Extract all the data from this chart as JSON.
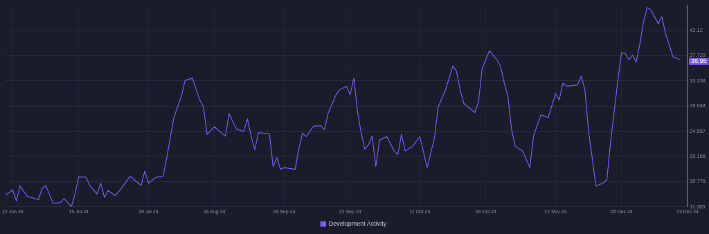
{
  "chart_data": {
    "type": "line",
    "legend": "bottom",
    "grid": true,
    "marker": "none",
    "line_style": "solid",
    "xlim": [
      "2024-06-20",
      "2024-12-23"
    ],
    "xticks": [
      {
        "value": "2024-06-22",
        "label": "22 Jun 24"
      },
      {
        "value": "2024-07-10",
        "label": "10 Jul 24"
      },
      {
        "value": "2024-07-29",
        "label": "29 Jul 24"
      },
      {
        "value": "2024-08-16",
        "label": "16 Aug 24"
      },
      {
        "value": "2024-09-04",
        "label": "04 Sep 24"
      },
      {
        "value": "2024-09-22",
        "label": "22 Sep 24"
      },
      {
        "value": "2024-10-11",
        "label": "11 Oct 24"
      },
      {
        "value": "2024-10-29",
        "label": "29 Oct 24"
      },
      {
        "value": "2024-11-17",
        "label": "17 Nov 24"
      },
      {
        "value": "2024-12-05",
        "label": "05 Dec 24"
      },
      {
        "value": "2024-12-23",
        "label": "23 Dec 24"
      }
    ],
    "ylim": [
      11.385,
      46.511
    ],
    "yticks": [
      11.385,
      15.776,
      20.166,
      24.557,
      28.948,
      33.338,
      37.729,
      42.12
    ],
    "x": [
      "2024-06-20",
      "2024-06-22",
      "2024-06-23",
      "2024-06-24",
      "2024-06-26",
      "2024-06-29",
      "2024-06-30",
      "2024-07-01",
      "2024-07-03",
      "2024-07-05",
      "2024-07-06",
      "2024-07-08",
      "2024-07-09",
      "2024-07-10",
      "2024-07-12",
      "2024-07-13",
      "2024-07-15",
      "2024-07-16",
      "2024-07-17",
      "2024-07-18",
      "2024-07-20",
      "2024-07-22",
      "2024-07-24",
      "2024-07-27",
      "2024-07-28",
      "2024-07-29",
      "2024-07-31",
      "2024-08-02",
      "2024-08-03",
      "2024-08-04",
      "2024-08-05",
      "2024-08-07",
      "2024-08-08",
      "2024-08-10",
      "2024-08-12",
      "2024-08-13",
      "2024-08-14",
      "2024-08-16",
      "2024-08-18",
      "2024-08-19",
      "2024-08-20",
      "2024-08-22",
      "2024-08-24",
      "2024-08-25",
      "2024-08-26",
      "2024-08-27",
      "2024-08-28",
      "2024-08-31",
      "2024-09-01",
      "2024-09-02",
      "2024-09-03",
      "2024-09-04",
      "2024-09-07",
      "2024-09-08",
      "2024-09-09",
      "2024-09-10",
      "2024-09-12",
      "2024-09-14",
      "2024-09-15",
      "2024-09-16",
      "2024-09-18",
      "2024-09-19",
      "2024-09-21",
      "2024-09-22",
      "2024-09-23",
      "2024-09-24",
      "2024-09-25",
      "2024-09-26",
      "2024-09-27",
      "2024-09-28",
      "2024-09-29",
      "2024-09-30",
      "2024-10-02",
      "2024-10-04",
      "2024-10-05",
      "2024-10-06",
      "2024-10-07",
      "2024-10-09",
      "2024-10-11",
      "2024-10-13",
      "2024-10-15",
      "2024-10-16",
      "2024-10-18",
      "2024-10-20",
      "2024-10-21",
      "2024-10-22",
      "2024-10-23",
      "2024-10-26",
      "2024-10-27",
      "2024-10-28",
      "2024-10-30",
      "2024-11-01",
      "2024-11-02",
      "2024-11-03",
      "2024-11-04",
      "2024-11-05",
      "2024-11-06",
      "2024-11-08",
      "2024-11-10",
      "2024-11-11",
      "2024-11-13",
      "2024-11-15",
      "2024-11-17",
      "2024-11-18",
      "2024-11-19",
      "2024-11-20",
      "2024-11-23",
      "2024-11-24",
      "2024-11-25",
      "2024-11-26",
      "2024-11-27",
      "2024-11-28",
      "2024-11-30",
      "2024-12-01",
      "2024-12-02",
      "2024-12-03",
      "2024-12-04",
      "2024-12-05",
      "2024-12-06",
      "2024-12-07",
      "2024-12-08",
      "2024-12-09",
      "2024-12-10",
      "2024-12-11",
      "2024-12-12",
      "2024-12-13",
      "2024-12-15",
      "2024-12-16",
      "2024-12-17",
      "2024-12-18",
      "2024-12-19",
      "2024-12-20",
      "2024-12-21"
    ],
    "series": [
      {
        "name": "Development Activity",
        "color": "#7b5cf0",
        "values": [
          13.4,
          14.3,
          12.4,
          15.0,
          13.2,
          12.6,
          14.5,
          15.1,
          12.0,
          12.1,
          12.8,
          11.4,
          13.6,
          16.6,
          16.5,
          15.1,
          13.6,
          15.5,
          13.0,
          14.2,
          13.3,
          14.9,
          16.7,
          15.1,
          17.6,
          15.5,
          16.5,
          16.7,
          19.9,
          23.6,
          27.1,
          30.7,
          33.4,
          33.8,
          30.0,
          28.8,
          24.0,
          25.3,
          24.2,
          23.7,
          27.6,
          24.9,
          24.5,
          26.7,
          23.7,
          21.3,
          24.3,
          24.1,
          18.4,
          19.9,
          17.9,
          18.2,
          17.9,
          21.4,
          24.2,
          23.6,
          25.4,
          25.5,
          24.8,
          27.7,
          30.7,
          31.7,
          32.4,
          30.9,
          33.8,
          28.0,
          24.3,
          21.4,
          22.2,
          23.7,
          18.4,
          23.0,
          23.6,
          21.1,
          20.5,
          24.0,
          21.1,
          21.9,
          23.6,
          18.2,
          23.4,
          28.8,
          31.7,
          35.9,
          35.0,
          31.7,
          29.4,
          27.8,
          29.7,
          35.5,
          38.6,
          37.0,
          35.9,
          33.0,
          30.7,
          24.9,
          21.9,
          21.1,
          18.2,
          23.7,
          27.4,
          26.9,
          31.1,
          30.0,
          32.9,
          32.4,
          32.6,
          34.1,
          31.8,
          24.5,
          19.9,
          15.0,
          15.5,
          16.1,
          22.6,
          28.0,
          33.4,
          38.2,
          38.1,
          37.0,
          37.8,
          36.6,
          39.8,
          43.6,
          46.1,
          45.7,
          43.3,
          44.5,
          41.5,
          39.6,
          37.5,
          37.3,
          36.95
        ]
      }
    ],
    "annotations": [
      {
        "text": "36.95",
        "x": "2024-12-21",
        "y": 36.95
      }
    ]
  }
}
